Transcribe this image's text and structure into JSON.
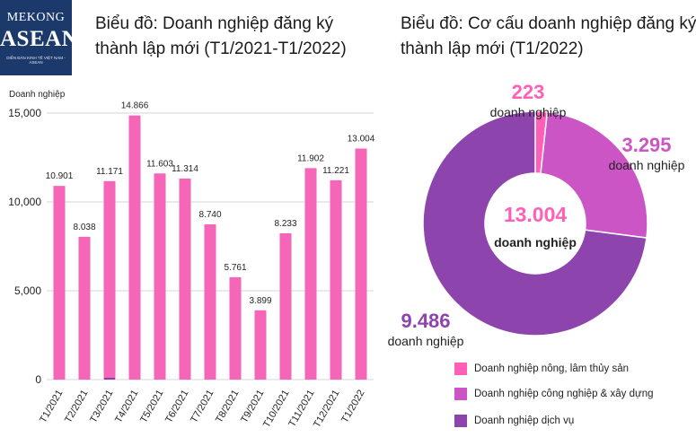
{
  "logo": {
    "line1": "MEKONG",
    "line2": "ASEAN",
    "line3": "DIỄN ĐÀN KINH TẾ VIỆT NAM - ASEAN"
  },
  "left_title": [
    "Biểu đồ: Doanh nghiệp đăng ký",
    "thành lập mới (T1/2021-T1/2022)"
  ],
  "right_title": [
    "Biểu đồ: Cơ cấu doanh nghiệp đăng ký",
    "thành lập mới (T1/2022)"
  ],
  "colors": {
    "bar": "#f566b9",
    "marker": "#8a3fa6",
    "agri": "#ff5fb7",
    "industry": "#cc55c6",
    "service": "#8e44ad"
  },
  "chart_data": [
    {
      "type": "bar",
      "title": "Biểu đồ: Doanh nghiệp đăng ký thành lập mới (T1/2021-T1/2022)",
      "ylabel": "Doanh nghiệp",
      "ylim": [
        0,
        15000
      ],
      "yticks": [
        0,
        5000,
        10000,
        15000
      ],
      "ytick_labels": [
        "0",
        "5,000",
        "10,000",
        "15,000"
      ],
      "grid": true,
      "categories": [
        "T1/2021",
        "T2/2021",
        "T3/2021",
        "T4/2021",
        "T5/2021",
        "T6/2021",
        "T7/2021",
        "T8/2021",
        "T9/2021",
        "T10/2021",
        "T11/2021",
        "T12/2021",
        "T1/2022"
      ],
      "values": [
        10901,
        8038,
        11171,
        14866,
        11603,
        11314,
        8740,
        5761,
        3899,
        8233,
        11902,
        11221,
        13004
      ],
      "value_labels": [
        "10.901",
        "8.038",
        "11.171",
        "14.866",
        "11.603",
        "11.314",
        "8.740",
        "5.761",
        "3.899",
        "8.233",
        "11.902",
        "11.221",
        "13.004"
      ]
    },
    {
      "type": "pie",
      "title": "Biểu đồ: Cơ cấu doanh nghiệp đăng ký thành lập mới (T1/2022)",
      "center_value": "13.004",
      "center_label": "doanh nghiệp",
      "labels": [
        "Doanh nghiệp nông, lâm thủy sản",
        "Doanh nghiệp công nghiệp & xây dựng",
        "Doanh nghiệp dịch vụ"
      ],
      "values": [
        223,
        3295,
        9486
      ],
      "value_labels": [
        "223",
        "3.295",
        "9.486"
      ],
      "unit_label": "doanh nghiệp",
      "legend": "bottom"
    }
  ]
}
